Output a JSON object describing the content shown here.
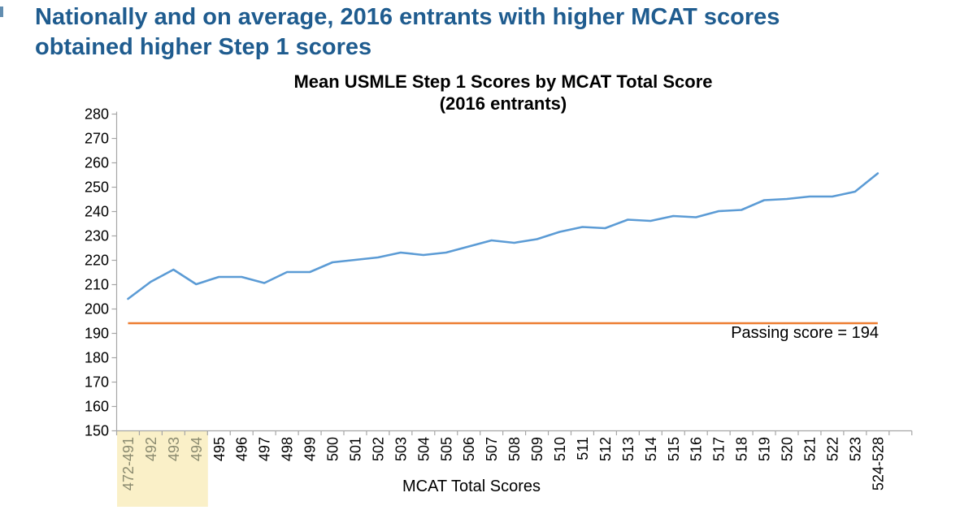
{
  "slide": {
    "title_line1": "Nationally and on average, 2016 entrants with higher MCAT scores",
    "title_line2": "obtained higher Step 1 scores"
  },
  "chart": {
    "title_line1": "Mean USMLE Step 1 Scores by MCAT Total Score",
    "title_line2": "(2016 entrants)",
    "x_axis_title": "MCAT Total Scores",
    "passing_label": "Passing score = 194"
  },
  "chart_data": {
    "type": "line",
    "title": "Mean USMLE Step 1 Scores by MCAT Total Score (2016 entrants)",
    "xlabel": "MCAT Total Scores",
    "ylabel": "",
    "ylim": [
      150,
      280
    ],
    "ytick_step": 10,
    "grid": false,
    "legend": "none",
    "categories": [
      "472-491",
      "492",
      "493",
      "494",
      "495",
      "496",
      "497",
      "498",
      "499",
      "500",
      "501",
      "502",
      "503",
      "504",
      "505",
      "506",
      "507",
      "508",
      "509",
      "510",
      "511",
      "512",
      "513",
      "514",
      "515",
      "516",
      "517",
      "518",
      "519",
      "520",
      "521",
      "522",
      "523",
      "524-528"
    ],
    "series": [
      {
        "name": "Mean USMLE Step 1 score",
        "values": [
          204,
          211,
          216,
          210,
          213,
          213,
          210.5,
          215,
          215,
          219,
          220,
          221,
          223,
          222,
          223,
          225.5,
          228,
          227,
          228.5,
          231.5,
          233.5,
          233,
          236.5,
          236,
          238,
          237.5,
          240,
          240.5,
          244.5,
          245,
          246,
          246,
          248,
          255.5
        ]
      }
    ],
    "reference_line": {
      "label": "Passing score = 194",
      "value": 194
    },
    "highlighted_categories": [
      "472-491",
      "492",
      "493",
      "494"
    ]
  },
  "colors": {
    "slide_title": "#1F5C8F",
    "chart_text": "#000000",
    "axis_line": "#A6A6A6",
    "series_line": "#5B9BD5",
    "passing_line": "#ED7D31",
    "highlight_bg": "#FAF0C8",
    "highlight_label": "#8B8B70"
  }
}
